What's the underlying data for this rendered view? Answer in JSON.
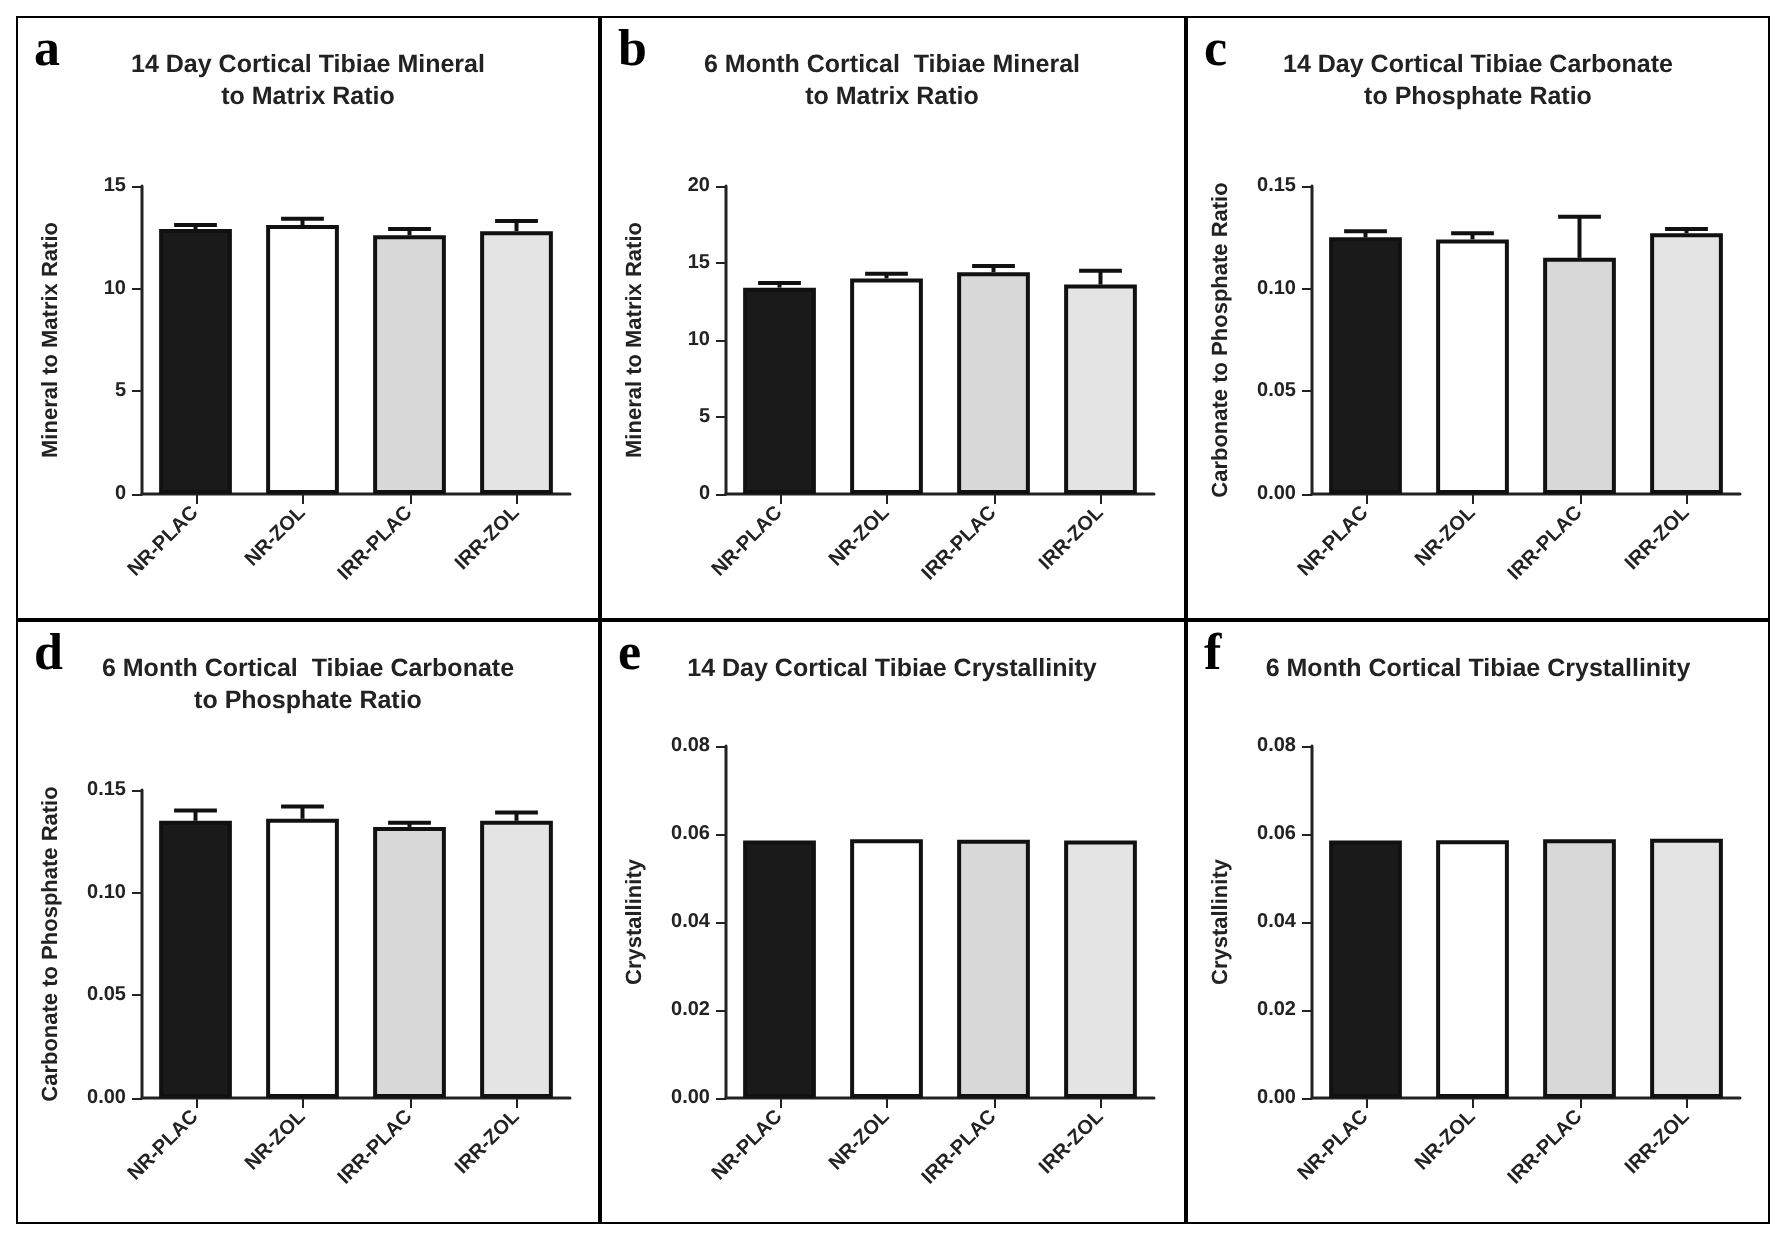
{
  "chart_data": [
    {
      "type": "bar",
      "annotations": [
        "a"
      ],
      "title": "14 Day Cortical Tibiae Mineral\nto Matrix Ratio",
      "ylabel": "Mineral to Matrix Ratio",
      "categories": [
        "NR-PLAC",
        "NR-ZOL",
        "IRR-PLAC",
        "IRR-ZOL"
      ],
      "values": [
        12.9,
        13.1,
        12.6,
        12.8
      ],
      "errors": [
        [
          12.9,
          13.1
        ],
        [
          13.1,
          13.4
        ],
        [
          12.6,
          12.9
        ],
        [
          12.8,
          13.3
        ]
      ],
      "colors": [
        "#1a1a1a",
        "#ffffff",
        "#d8d8d8",
        "#e4e4e4"
      ],
      "ylim": [
        0,
        15
      ],
      "yticks": [
        0,
        5,
        10,
        15
      ]
    },
    {
      "type": "bar",
      "annotations": [
        "b"
      ],
      "title": "6 Month Cortical  Tibiae Mineral\nto Matrix Ratio",
      "ylabel": "Mineral to Matrix Ratio",
      "categories": [
        "NR-PLAC",
        "NR-ZOL",
        "IRR-PLAC",
        "IRR-ZOL"
      ],
      "values": [
        13.4,
        14.0,
        14.4,
        13.6
      ],
      "errors": [
        [
          13.4,
          13.7
        ],
        [
          14.0,
          14.3
        ],
        [
          14.4,
          14.8
        ],
        [
          13.6,
          14.5
        ]
      ],
      "colors": [
        "#1a1a1a",
        "#ffffff",
        "#d8d8d8",
        "#e4e4e4"
      ],
      "ylim": [
        0,
        20
      ],
      "yticks": [
        0,
        5,
        10,
        15,
        20
      ]
    },
    {
      "type": "bar",
      "annotations": [
        "c"
      ],
      "title": "14 Day Cortical Tibiae Carbonate\nto Phosphate Ratio",
      "ylabel": "Carbonate to Phosphate Ratio",
      "categories": [
        "NR-PLAC",
        "NR-ZOL",
        "IRR-PLAC",
        "IRR-ZOL"
      ],
      "values": [
        0.125,
        0.124,
        0.115,
        0.127
      ],
      "errors": [
        [
          0.125,
          0.128
        ],
        [
          0.124,
          0.127
        ],
        [
          0.115,
          0.135
        ],
        [
          0.127,
          0.129
        ]
      ],
      "colors": [
        "#1a1a1a",
        "#ffffff",
        "#d8d8d8",
        "#e4e4e4"
      ],
      "ylim": [
        0,
        0.15
      ],
      "yticks": [
        {
          "value": 0,
          "label": "0.00"
        },
        {
          "value": 0.05,
          "label": "0.05"
        },
        {
          "value": 0.1,
          "label": "0.10"
        },
        {
          "value": 0.15,
          "label": "0.15"
        }
      ]
    },
    {
      "type": "bar",
      "annotations": [
        "d"
      ],
      "title": "6 Month Cortical  Tibiae Carbonate\nto Phosphate Ratio",
      "ylabel": "Carbonate to Phosphate Ratio",
      "categories": [
        "NR-PLAC",
        "NR-ZOL",
        "IRR-PLAC",
        "IRR-ZOL"
      ],
      "values": [
        0.135,
        0.136,
        0.132,
        0.135
      ],
      "errors": [
        [
          0.135,
          0.14
        ],
        [
          0.136,
          0.142
        ],
        [
          0.132,
          0.134
        ],
        [
          0.135,
          0.139
        ]
      ],
      "colors": [
        "#1a1a1a",
        "#ffffff",
        "#d8d8d8",
        "#e4e4e4"
      ],
      "ylim": [
        0,
        0.15
      ],
      "yticks": [
        {
          "value": 0,
          "label": "0.00"
        },
        {
          "value": 0.05,
          "label": "0.05"
        },
        {
          "value": 0.1,
          "label": "0.10"
        },
        {
          "value": 0.15,
          "label": "0.15"
        }
      ]
    },
    {
      "type": "bar",
      "annotations": [
        "e"
      ],
      "title": "14 Day Cortical Tibiae Crystallinity",
      "ylabel": "Crystallinity",
      "categories": [
        "NR-PLAC",
        "NR-ZOL",
        "IRR-PLAC",
        "IRR-ZOL"
      ],
      "values": [
        0.0585,
        0.0588,
        0.0587,
        0.0585
      ],
      "colors": [
        "#1a1a1a",
        "#ffffff",
        "#d8d8d8",
        "#e4e4e4"
      ],
      "ylim": [
        0,
        0.08
      ],
      "yticks": [
        {
          "value": 0,
          "label": "0.00"
        },
        {
          "value": 0.02,
          "label": "0.02"
        },
        {
          "value": 0.04,
          "label": "0.04"
        },
        {
          "value": 0.06,
          "label": "0.06"
        },
        {
          "value": 0.08,
          "label": "0.08"
        }
      ]
    },
    {
      "type": "bar",
      "annotations": [
        "f"
      ],
      "title": "6 Month Cortical Tibiae Crystallinity",
      "ylabel": "Crystallinity",
      "categories": [
        "NR-PLAC",
        "NR-ZOL",
        "IRR-PLAC",
        "IRR-ZOL"
      ],
      "values": [
        0.0585,
        0.0586,
        0.0588,
        0.0589
      ],
      "colors": [
        "#1a1a1a",
        "#ffffff",
        "#d8d8d8",
        "#e4e4e4"
      ],
      "ylim": [
        0,
        0.08
      ],
      "yticks": [
        {
          "value": 0,
          "label": "0.00"
        },
        {
          "value": 0.02,
          "label": "0.02"
        },
        {
          "value": 0.04,
          "label": "0.04"
        },
        {
          "value": 0.06,
          "label": "0.06"
        },
        {
          "value": 0.08,
          "label": "0.08"
        }
      ]
    }
  ]
}
